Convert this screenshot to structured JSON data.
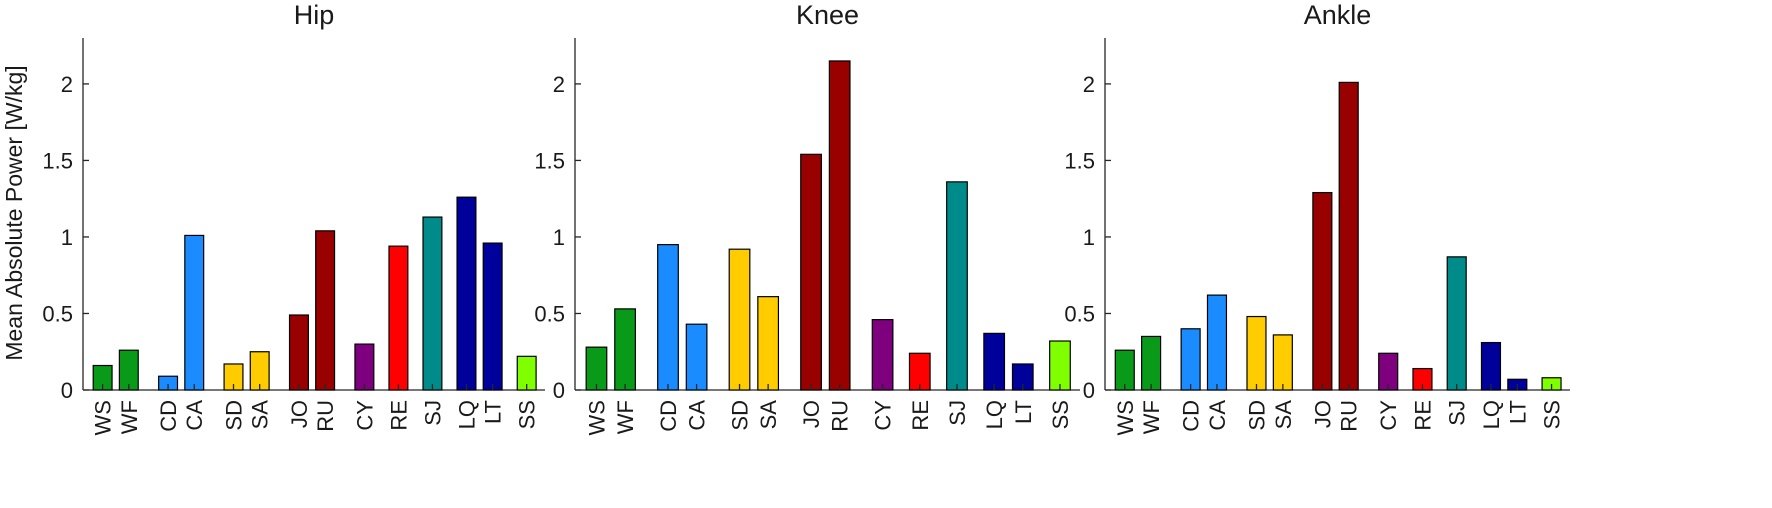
{
  "figure": {
    "ylabel": "Mean Absolute Power [W/kg]"
  },
  "colors": {
    "WS": "#0a9a1a",
    "WF": "#0a9a1a",
    "CD": "#1a8cff",
    "CA": "#1a8cff",
    "SD": "#ffcc00",
    "SA": "#ffcc00",
    "JO": "#990000",
    "RU": "#990000",
    "CY": "#7f007f",
    "RE": "#ff0000",
    "SJ": "#008b8b",
    "LQ": "#00009a",
    "LT": "#00009a",
    "SS": "#80ff00"
  },
  "chart_data": [
    {
      "type": "bar",
      "title": "Hip",
      "ylabel": "Mean Absolute Power [W/kg]",
      "ylim": [
        0,
        2.3
      ],
      "yticks": [
        0,
        0.5,
        1,
        1.5,
        2
      ],
      "ytick_labels": [
        "0",
        "0.5",
        "1",
        "1.5",
        "2"
      ],
      "categories": [
        "WS",
        "WF",
        "CD",
        "CA",
        "SD",
        "SA",
        "JO",
        "RU",
        "CY",
        "RE",
        "SJ",
        "LQ",
        "LT",
        "SS"
      ],
      "values": [
        0.16,
        0.26,
        0.09,
        1.01,
        0.17,
        0.25,
        0.49,
        1.04,
        0.3,
        0.94,
        1.13,
        1.26,
        0.96,
        0.22
      ],
      "grid": false,
      "legend": "none"
    },
    {
      "type": "bar",
      "title": "Knee",
      "ylim": [
        0,
        2.3
      ],
      "yticks": [
        0,
        0.5,
        1,
        1.5,
        2
      ],
      "ytick_labels": [
        "0",
        "0.5",
        "1",
        "1.5",
        "2"
      ],
      "categories": [
        "WS",
        "WF",
        "CD",
        "CA",
        "SD",
        "SA",
        "JO",
        "RU",
        "CY",
        "RE",
        "SJ",
        "LQ",
        "LT",
        "SS"
      ],
      "values": [
        0.28,
        0.53,
        0.95,
        0.43,
        0.92,
        0.61,
        1.54,
        2.15,
        0.46,
        0.24,
        1.36,
        0.37,
        0.17,
        0.32
      ],
      "grid": false,
      "legend": "none"
    },
    {
      "type": "bar",
      "title": "Ankle",
      "ylim": [
        0,
        2.3
      ],
      "yticks": [
        0,
        0.5,
        1,
        1.5,
        2
      ],
      "ytick_labels": [
        "0",
        "0.5",
        "1",
        "1.5",
        "2"
      ],
      "categories": [
        "WS",
        "WF",
        "CD",
        "CA",
        "SD",
        "SA",
        "JO",
        "RU",
        "CY",
        "RE",
        "SJ",
        "LQ",
        "LT",
        "SS"
      ],
      "values": [
        0.26,
        0.35,
        0.4,
        0.62,
        0.48,
        0.36,
        1.29,
        2.01,
        0.24,
        0.14,
        0.87,
        0.31,
        0.07,
        0.08
      ],
      "grid": false,
      "legend": "none"
    }
  ]
}
